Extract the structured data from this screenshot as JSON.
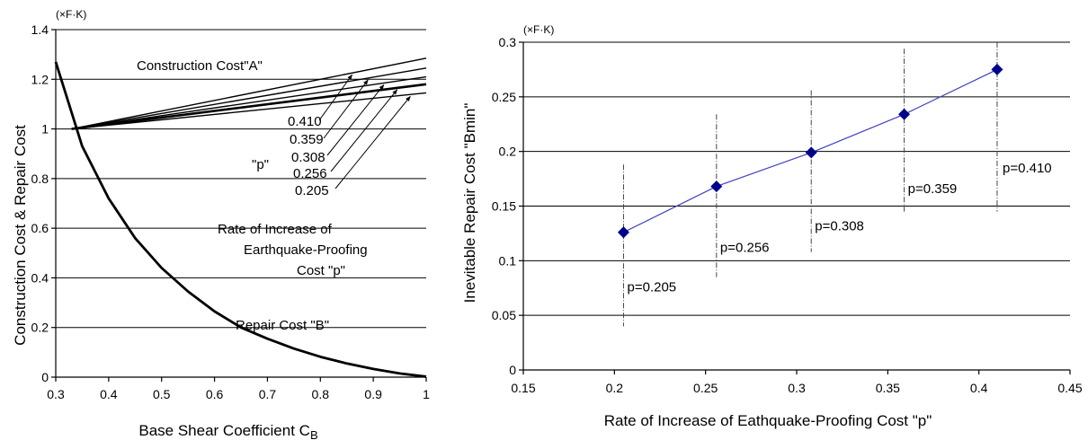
{
  "chart_data": [
    {
      "type": "line",
      "unit_label": "(×F·K)",
      "xlabel": "Base Shear Coefficient C",
      "xlabel_sub": "B",
      "ylabel": "Construction Cost & Repair Cost",
      "xlim": [
        0.3,
        1.0
      ],
      "ylim": [
        0,
        1.4
      ],
      "x_ticks": [
        0.3,
        0.4,
        0.5,
        0.6,
        0.7,
        0.8,
        0.9,
        1.0
      ],
      "x_tick_labels": [
        "0.3",
        "0.4",
        "0.5",
        "0.6",
        "0.7",
        "0.8",
        "0.9",
        "1"
      ],
      "y_ticks": [
        0,
        0.2,
        0.4,
        0.6,
        0.8,
        1.0,
        1.2,
        1.4
      ],
      "y_tick_labels": [
        "0",
        "0.2",
        "0.4",
        "0.6",
        "0.8",
        "1",
        "1.2",
        "1.4"
      ],
      "grid": "horizontal",
      "construction_cost_label": "Construction Cost\"A\"",
      "construction_series": [
        {
          "p": "0.410",
          "x": [
            0.33,
            1.0
          ],
          "y": [
            1.0,
            1.285
          ]
        },
        {
          "p": "0.359",
          "x": [
            0.33,
            1.0
          ],
          "y": [
            1.0,
            1.245
          ]
        },
        {
          "p": "0.308",
          "x": [
            0.33,
            1.0
          ],
          "y": [
            1.0,
            1.21
          ]
        },
        {
          "p": "0.256",
          "x": [
            0.33,
            1.0
          ],
          "y": [
            1.0,
            1.18
          ]
        },
        {
          "p": "0.205",
          "x": [
            0.33,
            1.0
          ],
          "y": [
            1.0,
            1.145
          ]
        }
      ],
      "p_labels": [
        "0.410",
        "0.359",
        "0.308",
        "0.256",
        "0.205"
      ],
      "p_symbol": "\"p\"",
      "rate_annotation": [
        "Rate of Increase of",
        "Earthquake-Proofing",
        "Cost  \"p\""
      ],
      "repair_cost_label": "Repair Cost \"B\"",
      "repair_series": {
        "x": [
          0.3,
          0.35,
          0.4,
          0.45,
          0.5,
          0.55,
          0.6,
          0.65,
          0.7,
          0.75,
          0.8,
          0.85,
          0.9,
          0.95,
          1.0
        ],
        "y": [
          1.27,
          0.93,
          0.72,
          0.56,
          0.44,
          0.345,
          0.265,
          0.2,
          0.155,
          0.115,
          0.082,
          0.055,
          0.033,
          0.015,
          0.002
        ]
      }
    },
    {
      "type": "scatter",
      "unit_label": "(×F·K)",
      "xlabel": "Rate of Increase of Eathquake-Proofing Cost \"p\"",
      "ylabel": "Inevitable Repair Cost \"Bmin\"",
      "xlim": [
        0.15,
        0.45
      ],
      "ylim": [
        0,
        0.3
      ],
      "x_ticks": [
        0.15,
        0.2,
        0.25,
        0.3,
        0.35,
        0.4,
        0.45
      ],
      "x_tick_labels": [
        "0.15",
        "0.2",
        "0.25",
        "0.3",
        "0.35",
        "0.4",
        "0.45"
      ],
      "y_ticks": [
        0,
        0.05,
        0.1,
        0.15,
        0.2,
        0.25,
        0.3
      ],
      "y_tick_labels": [
        "0",
        "0.05",
        "0.1",
        "0.15",
        "0.2",
        "0.25",
        "0.3"
      ],
      "grid": "horizontal",
      "marker_color": "#00008b",
      "line_color": "#4040c0",
      "x": [
        0.205,
        0.256,
        0.308,
        0.359,
        0.41
      ],
      "y": [
        0.126,
        0.168,
        0.199,
        0.234,
        0.275
      ],
      "point_labels": [
        "p=0.205",
        "p=0.256",
        "p=0.308",
        "p=0.359",
        "p=0.410"
      ]
    }
  ]
}
